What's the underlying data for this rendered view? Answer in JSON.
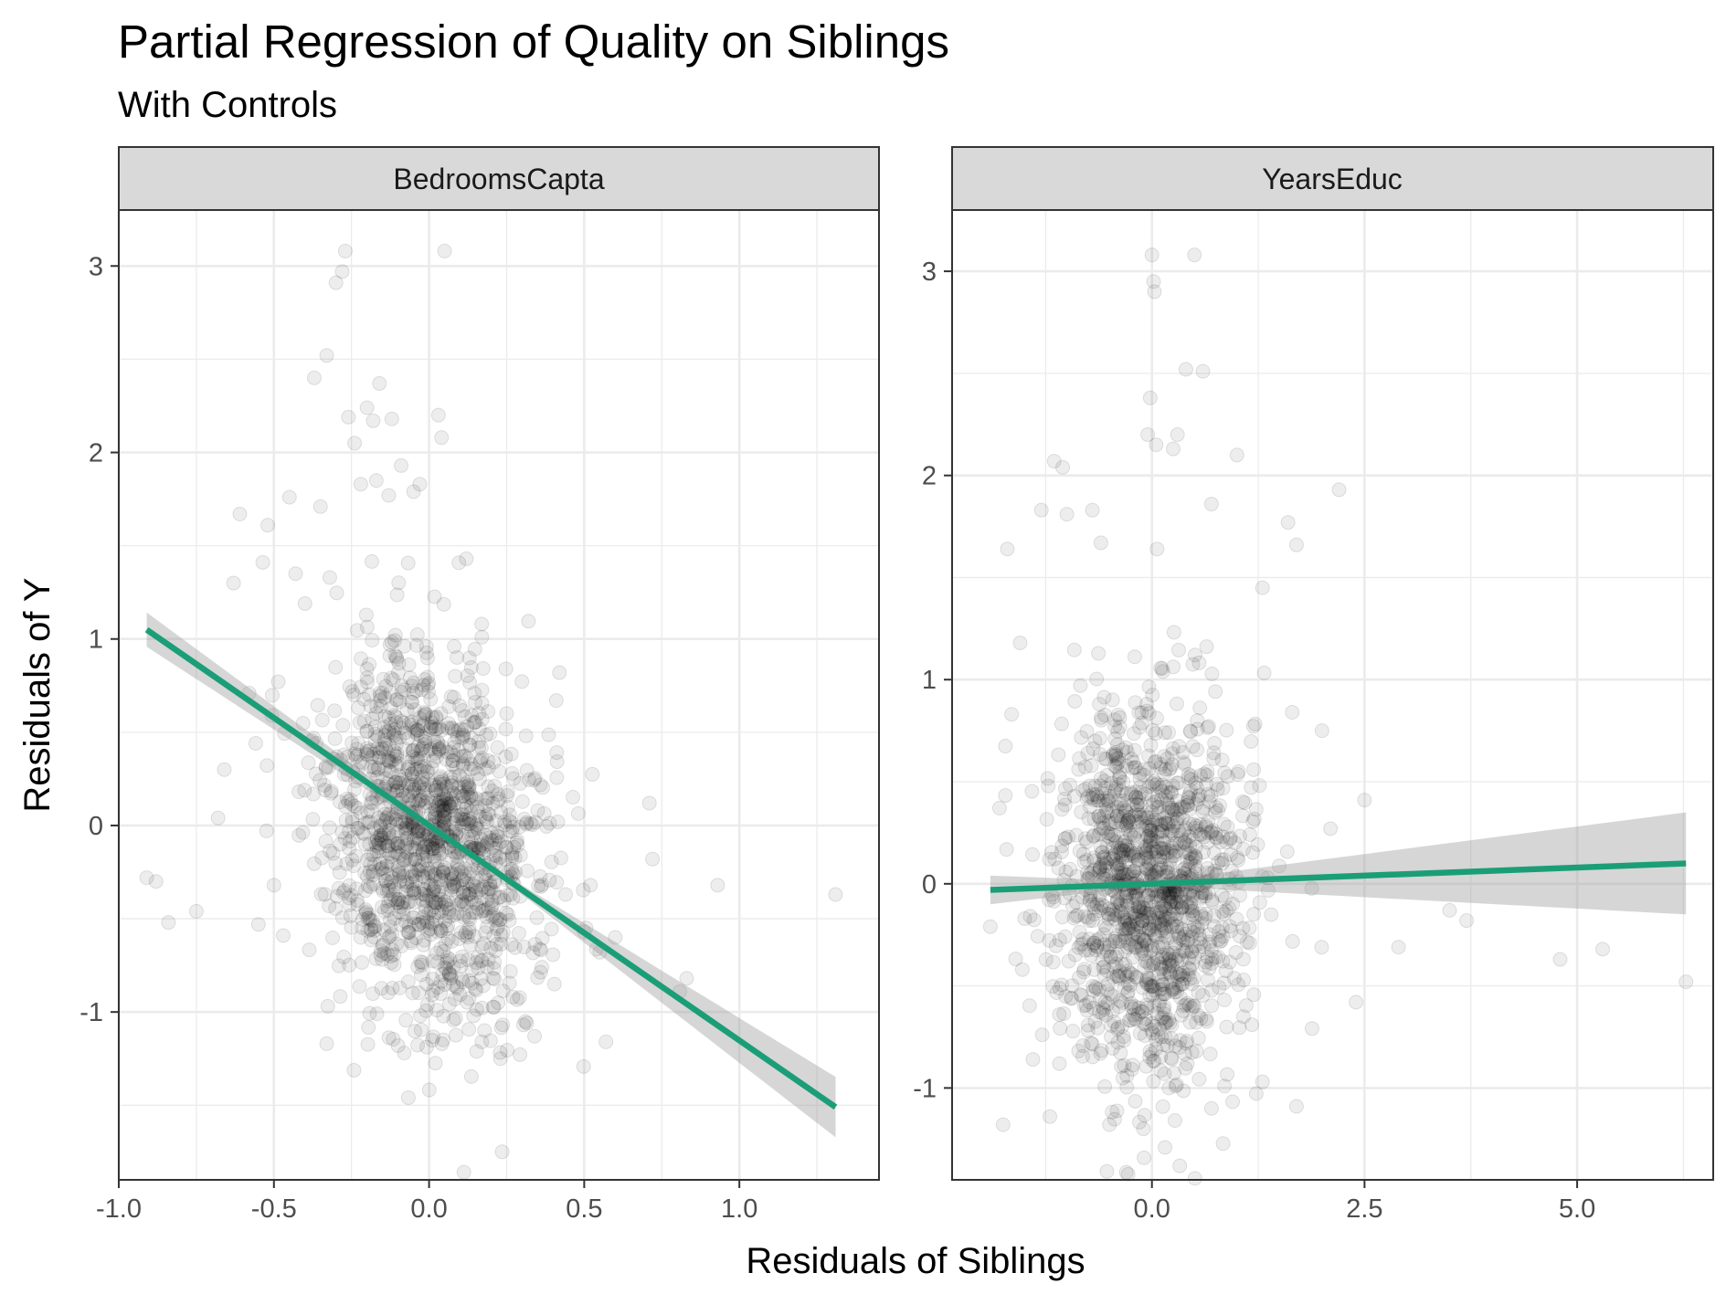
{
  "chart_data": {
    "type": "scatter",
    "title": "Partial Regression of Quality on Siblings",
    "subtitle": "With Controls",
    "xlabel": "Residuals of Siblings",
    "ylabel": "Residuals of Y",
    "colors": {
      "fit_line": "#1b9e77",
      "points": "#000000",
      "ribbon": "#999999",
      "strip_bg": "#d9d9d9"
    },
    "panels": [
      {
        "name": "BedroomsCapta",
        "xlim": [
          -1.0,
          1.45
        ],
        "ylim": [
          -1.9,
          3.3
        ],
        "x_ticks": [
          -1.0,
          -0.5,
          0.0,
          0.5,
          1.0
        ],
        "x_tick_labels": [
          "-1.0",
          "-0.5",
          "0.0",
          "0.5",
          "1.0"
        ],
        "y_ticks": [
          -1,
          0,
          1,
          2,
          3
        ],
        "y_tick_labels": [
          "-1",
          "0",
          "1",
          "2",
          "3"
        ],
        "fit": {
          "x": [
            -0.91,
            1.31
          ],
          "y": [
            1.05,
            -1.51
          ],
          "se": [
            0.08,
            0.15
          ]
        },
        "cloud": {
          "cx": 0.0,
          "cy": -0.05,
          "sx": 0.17,
          "sy": 0.55,
          "slope": -0.45,
          "n": 1400
        },
        "points": [
          [
            -0.91,
            -0.28
          ],
          [
            -0.88,
            -0.3
          ],
          [
            -0.84,
            -0.52
          ],
          [
            -0.75,
            -0.46
          ],
          [
            -0.68,
            0.04
          ],
          [
            -0.66,
            0.3
          ],
          [
            -0.63,
            1.3
          ],
          [
            -0.61,
            1.67
          ],
          [
            -0.58,
            0.71
          ],
          [
            -0.55,
            -0.53
          ],
          [
            -0.52,
            1.61
          ],
          [
            -0.5,
            -0.32
          ],
          [
            -0.47,
            -0.59
          ],
          [
            -0.45,
            1.76
          ],
          [
            -0.43,
            1.35
          ],
          [
            -0.4,
            1.19
          ],
          [
            -0.37,
            2.4
          ],
          [
            -0.35,
            1.71
          ],
          [
            -0.33,
            2.52
          ],
          [
            -0.32,
            1.33
          ],
          [
            -0.3,
            2.91
          ],
          [
            -0.28,
            2.97
          ],
          [
            -0.27,
            3.08
          ],
          [
            -0.26,
            2.19
          ],
          [
            -0.24,
            2.05
          ],
          [
            -0.22,
            1.83
          ],
          [
            -0.2,
            2.24
          ],
          [
            -0.18,
            2.17
          ],
          [
            -0.17,
            1.85
          ],
          [
            -0.16,
            2.37
          ],
          [
            -0.13,
            1.77
          ],
          [
            -0.12,
            2.18
          ],
          [
            -0.09,
            1.93
          ],
          [
            -0.05,
            1.79
          ],
          [
            -0.03,
            1.83
          ],
          [
            0.03,
            2.2
          ],
          [
            0.04,
            2.08
          ],
          [
            0.05,
            3.08
          ],
          [
            0.12,
            1.43
          ],
          [
            0.17,
            1.01
          ],
          [
            0.25,
            0.6
          ],
          [
            0.35,
            0.08
          ],
          [
            0.41,
            0.67
          ],
          [
            0.44,
            -0.37
          ],
          [
            0.5,
            -0.57
          ],
          [
            0.52,
            -0.32
          ],
          [
            0.55,
            -0.68
          ],
          [
            0.57,
            -1.16
          ],
          [
            0.6,
            -0.6
          ],
          [
            0.71,
            0.12
          ],
          [
            0.72,
            -0.18
          ],
          [
            0.83,
            -0.82
          ],
          [
            0.93,
            -0.32
          ],
          [
            1.31,
            -0.37
          ],
          [
            -0.33,
            -1.17
          ],
          [
            -0.1,
            -1.18
          ],
          [
            -0.08,
            -1.22
          ],
          [
            0.17,
            -1.16
          ],
          [
            0.23,
            -1.25
          ],
          [
            0.34,
            -1.13
          ],
          [
            0.27,
            -0.92
          ]
        ]
      },
      {
        "name": "YearsEduc",
        "xlim": [
          -2.35,
          6.6
        ],
        "ylim": [
          -1.45,
          3.3
        ],
        "x_ticks": [
          0.0,
          2.5,
          5.0
        ],
        "x_tick_labels": [
          "0.0",
          "2.5",
          "5.0"
        ],
        "y_ticks": [
          -1,
          0,
          1,
          2,
          3
        ],
        "y_tick_labels": [
          "-1",
          "0",
          "1",
          "2",
          "3"
        ],
        "fit": {
          "x": [
            -1.9,
            6.28
          ],
          "y": [
            -0.03,
            0.1
          ],
          "se": [
            0.06,
            0.24
          ]
        },
        "cloud": {
          "cx": 0.0,
          "cy": -0.05,
          "sx": 0.55,
          "sy": 0.5,
          "slope": 0.0,
          "n": 1400
        },
        "points": [
          [
            -1.9,
            -0.21
          ],
          [
            -1.75,
            -1.18
          ],
          [
            -1.7,
            1.64
          ],
          [
            -1.65,
            0.83
          ],
          [
            -1.55,
            1.18
          ],
          [
            -1.4,
            -0.86
          ],
          [
            -1.3,
            1.83
          ],
          [
            -1.2,
            -1.14
          ],
          [
            -1.15,
            2.07
          ],
          [
            -1.05,
            2.04
          ],
          [
            -1.0,
            1.81
          ],
          [
            -0.7,
            1.83
          ],
          [
            -0.6,
            1.67
          ],
          [
            -0.05,
            2.2
          ],
          [
            0.0,
            3.08
          ],
          [
            0.02,
            2.95
          ],
          [
            0.03,
            2.9
          ],
          [
            -0.02,
            2.38
          ],
          [
            0.05,
            2.15
          ],
          [
            0.25,
            2.13
          ],
          [
            0.3,
            2.2
          ],
          [
            0.4,
            2.52
          ],
          [
            0.5,
            3.08
          ],
          [
            0.6,
            2.51
          ],
          [
            0.7,
            1.86
          ],
          [
            1.0,
            2.1
          ],
          [
            1.3,
            1.45
          ],
          [
            1.6,
            1.77
          ],
          [
            1.65,
            0.84
          ],
          [
            1.7,
            1.66
          ],
          [
            2.0,
            0.75
          ],
          [
            2.2,
            1.93
          ],
          [
            2.5,
            0.41
          ],
          [
            2.1,
            0.27
          ],
          [
            2.9,
            -0.31
          ],
          [
            2.4,
            -0.58
          ],
          [
            3.5,
            -0.13
          ],
          [
            3.7,
            -0.18
          ],
          [
            4.8,
            -0.37
          ],
          [
            5.3,
            -0.32
          ],
          [
            6.28,
            -0.48
          ],
          [
            1.7,
            -1.09
          ],
          [
            0.7,
            -1.1
          ],
          [
            -0.1,
            -1.2
          ],
          [
            -0.5,
            -1.18
          ],
          [
            0.2,
            -1.0
          ],
          [
            1.3,
            -0.97
          ]
        ]
      }
    ]
  }
}
